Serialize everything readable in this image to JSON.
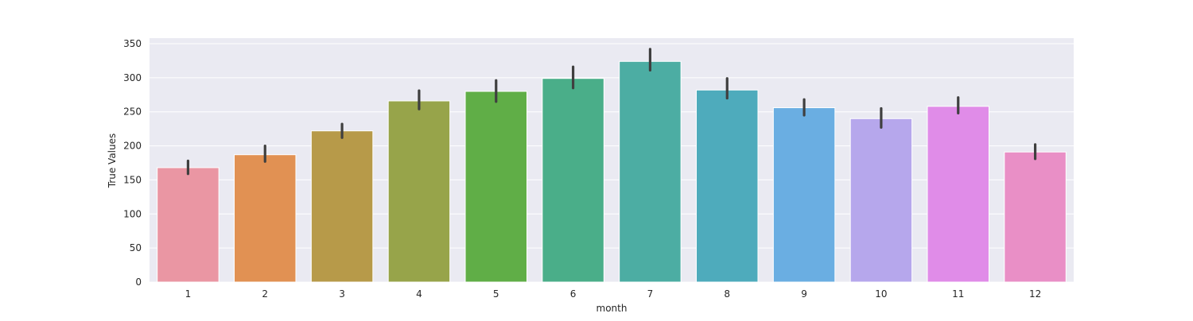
{
  "chart_data": {
    "type": "bar",
    "title": "",
    "xlabel": "month",
    "ylabel": "True Values",
    "categories": [
      "1",
      "2",
      "3",
      "4",
      "5",
      "6",
      "7",
      "8",
      "9",
      "10",
      "11",
      "12"
    ],
    "values": [
      168,
      187,
      222,
      266,
      280,
      299,
      324,
      282,
      256,
      240,
      258,
      191
    ],
    "error_low": [
      159,
      177,
      212,
      254,
      265,
      285,
      311,
      270,
      245,
      227,
      248,
      181
    ],
    "error_high": [
      178,
      200,
      232,
      281,
      296,
      316,
      342,
      299,
      268,
      255,
      271,
      202
    ],
    "ylim": [
      0,
      350
    ],
    "yticks": [
      0,
      50,
      100,
      150,
      200,
      250,
      300,
      350
    ],
    "grid": true,
    "background": "#eaeaf2",
    "error_color": "#3f3f3f",
    "colors": [
      "#ea96a3",
      "#e19153",
      "#b79a49",
      "#97a44a",
      "#60ae47",
      "#4aae89",
      "#4cada3",
      "#4eabbc",
      "#6aaee2",
      "#b6a7ec",
      "#e08ce8",
      "#e98fc6"
    ]
  }
}
